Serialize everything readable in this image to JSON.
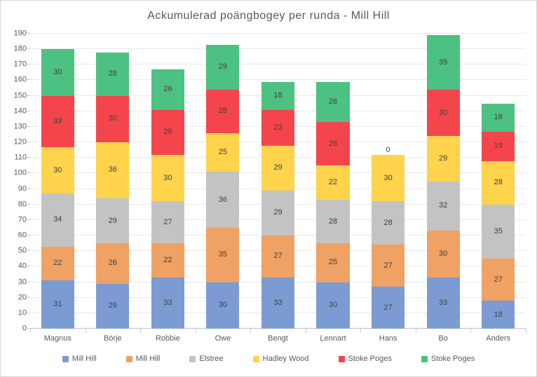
{
  "chart_data": {
    "type": "bar",
    "stacked": true,
    "title": "Ackumulerad poängbogey per runda - Mill Hill",
    "categories": [
      "Magnus",
      "Börje",
      "Robbie",
      "Owe",
      "Bengt",
      "Lennart",
      "Hans",
      "Bo",
      "Anders"
    ],
    "series": [
      {
        "name": "Mill Hill",
        "color": "#7d9bd3",
        "values": [
          31,
          29,
          33,
          30,
          33,
          30,
          27,
          33,
          18
        ]
      },
      {
        "name": "Mill Hill",
        "color": "#f0a164",
        "values": [
          22,
          26,
          22,
          35,
          27,
          25,
          27,
          30,
          27
        ]
      },
      {
        "name": "Elstree",
        "color": "#c3c3c3",
        "values": [
          34,
          29,
          27,
          36,
          29,
          28,
          28,
          32,
          35
        ]
      },
      {
        "name": "Hadley Wood",
        "color": "#ffd34c",
        "values": [
          30,
          36,
          30,
          25,
          29,
          22,
          30,
          29,
          28
        ]
      },
      {
        "name": "Stoke Poges",
        "color": "#f4454d",
        "values": [
          33,
          30,
          29,
          28,
          23,
          28,
          0,
          30,
          19
        ]
      },
      {
        "name": "Stoke Poges",
        "color": "#4dc181",
        "values": [
          30,
          28,
          26,
          29,
          18,
          26,
          0,
          35,
          18
        ]
      }
    ],
    "ylabel": "",
    "xlabel": "",
    "ylim": [
      0,
      190
    ],
    "ytick_step": 10,
    "grid": true,
    "data_labels": true,
    "legend_position": "bottom",
    "colors": {
      "title_text": "#595959",
      "axis_text": "#595959",
      "data_label_text": "#404040",
      "gridline": "#e9e9e9"
    }
  }
}
